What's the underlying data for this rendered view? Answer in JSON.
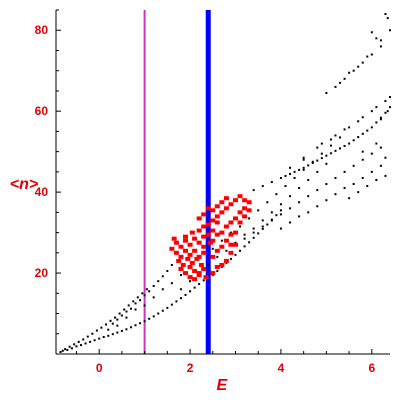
{
  "chart_data": {
    "type": "scatter",
    "xlabel": "E",
    "ylabel": "<n>",
    "xlim": [
      -0.95,
      6.4
    ],
    "ylim": [
      0,
      85
    ],
    "x_ticks": [
      {
        "value": 0,
        "label": "0"
      },
      {
        "value": 2,
        "label": "2"
      },
      {
        "value": 4,
        "label": "4"
      },
      {
        "value": 6,
        "label": "6"
      }
    ],
    "y_ticks": [
      {
        "value": 20,
        "label": "20"
      },
      {
        "value": 40,
        "label": "40"
      },
      {
        "value": 60,
        "label": "60"
      },
      {
        "value": 80,
        "label": "80"
      }
    ],
    "grid": false,
    "legend": "none",
    "vertical_lines": [
      {
        "x": 1.0,
        "color": "#cc33cc"
      },
      {
        "x": 2.4,
        "color": "#0000ff"
      }
    ],
    "series": [
      {
        "color": "#000000",
        "marker": "dot",
        "points": [
          [
            -0.85,
            0.5
          ],
          [
            -0.8,
            0.8
          ],
          [
            -0.75,
            1.2
          ],
          [
            -0.7,
            1.0
          ],
          [
            -0.65,
            1.8
          ],
          [
            -0.6,
            1.4
          ],
          [
            -0.55,
            2.4
          ],
          [
            -0.5,
            1.9
          ],
          [
            -0.45,
            3.0
          ],
          [
            -0.4,
            2.2
          ],
          [
            -0.35,
            3.6
          ],
          [
            -0.3,
            2.6
          ],
          [
            -0.25,
            4.3
          ],
          [
            -0.2,
            3.0
          ],
          [
            -0.15,
            5.0
          ],
          [
            -0.1,
            3.4
          ],
          [
            -0.05,
            5.8
          ],
          [
            0.0,
            3.8
          ],
          [
            0.05,
            6.5
          ],
          [
            0.1,
            4.2
          ],
          [
            0.15,
            7.3
          ],
          [
            0.2,
            4.5
          ],
          [
            0.25,
            8.2
          ],
          [
            0.3,
            4.9
          ],
          [
            0.35,
            9.0
          ],
          [
            0.4,
            5.3
          ],
          [
            0.45,
            10.0
          ],
          [
            0.5,
            5.7
          ],
          [
            0.55,
            11.0
          ],
          [
            0.6,
            6.1
          ],
          [
            0.65,
            12.0
          ],
          [
            0.7,
            6.6
          ],
          [
            0.75,
            13.0
          ],
          [
            0.8,
            7.1
          ],
          [
            0.85,
            14.0
          ],
          [
            0.9,
            7.6
          ],
          [
            0.95,
            15.0
          ],
          [
            1.0,
            8.1
          ],
          [
            1.05,
            16.0
          ],
          [
            1.1,
            8.7
          ],
          [
            1.2,
            9.3
          ],
          [
            1.3,
            10.0
          ],
          [
            1.4,
            10.7
          ],
          [
            1.5,
            11.4
          ],
          [
            1.6,
            12.2
          ],
          [
            1.7,
            13.0
          ],
          [
            1.8,
            13.8
          ],
          [
            1.9,
            14.6
          ],
          [
            2.0,
            15.5
          ],
          [
            2.1,
            16.4
          ],
          [
            2.2,
            17.3
          ],
          [
            2.3,
            18.2
          ],
          [
            2.5,
            19.5
          ],
          [
            2.6,
            20.5
          ],
          [
            2.7,
            21.5
          ],
          [
            2.8,
            22.5
          ],
          [
            2.9,
            23.5
          ],
          [
            3.0,
            24.5
          ],
          [
            3.1,
            25.5
          ],
          [
            3.2,
            26.6
          ],
          [
            3.3,
            27.6
          ],
          [
            3.4,
            28.7
          ],
          [
            3.5,
            29.8
          ],
          [
            3.6,
            30.9
          ],
          [
            3.7,
            32.0
          ],
          [
            3.8,
            33.2
          ],
          [
            3.9,
            34.3
          ],
          [
            4.0,
            35.5
          ],
          [
            0.2,
            6.0
          ],
          [
            0.3,
            7.5
          ],
          [
            0.4,
            8.5
          ],
          [
            0.5,
            9.5
          ],
          [
            0.6,
            10.5
          ],
          [
            0.7,
            11.2
          ],
          [
            0.8,
            12.5
          ],
          [
            0.9,
            13.3
          ],
          [
            1.0,
            14.5
          ],
          [
            1.1,
            15.5
          ],
          [
            1.2,
            16.8
          ],
          [
            1.3,
            18.0
          ],
          [
            1.4,
            19.2
          ],
          [
            1.5,
            20.5
          ],
          [
            1.6,
            22.0
          ],
          [
            0.4,
            7.0
          ],
          [
            0.6,
            9.0
          ],
          [
            0.8,
            11.0
          ],
          [
            1.0,
            12.0
          ],
          [
            1.2,
            14.0
          ],
          [
            1.4,
            16.0
          ],
          [
            1.6,
            17.5
          ],
          [
            1.8,
            19.5
          ],
          [
            2.0,
            21.5
          ],
          [
            1.8,
            16.0
          ],
          [
            2.0,
            18.0
          ],
          [
            2.2,
            19.5
          ],
          [
            2.4,
            22.0
          ],
          [
            2.6,
            24.0
          ],
          [
            2.8,
            25.5
          ],
          [
            3.0,
            27.5
          ],
          [
            3.2,
            29.5
          ],
          [
            3.4,
            31.0
          ],
          [
            3.6,
            33.0
          ],
          [
            3.8,
            35.0
          ],
          [
            4.0,
            37.0
          ],
          [
            4.2,
            39.0
          ],
          [
            4.4,
            41.0
          ],
          [
            4.6,
            43.0
          ],
          [
            4.8,
            45.0
          ],
          [
            5.0,
            47.0
          ],
          [
            2.5,
            26.0
          ],
          [
            2.7,
            28.0
          ],
          [
            2.9,
            30.0
          ],
          [
            3.1,
            31.5
          ],
          [
            3.3,
            33.5
          ],
          [
            3.5,
            35.5
          ],
          [
            3.7,
            37.5
          ],
          [
            3.9,
            39.5
          ],
          [
            4.1,
            41.5
          ],
          [
            4.3,
            43.5
          ],
          [
            4.5,
            45.5
          ],
          [
            4.7,
            47.5
          ],
          [
            4.9,
            49.5
          ],
          [
            5.1,
            51.5
          ],
          [
            5.3,
            53.5
          ],
          [
            3.0,
            27.0
          ],
          [
            3.2,
            28.5
          ],
          [
            3.4,
            30.0
          ],
          [
            3.6,
            31.5
          ],
          [
            3.8,
            33.0
          ],
          [
            4.0,
            34.5
          ],
          [
            4.2,
            36.0
          ],
          [
            4.4,
            37.5
          ],
          [
            4.6,
            39.0
          ],
          [
            4.8,
            40.5
          ],
          [
            5.0,
            42.0
          ],
          [
            5.2,
            43.5
          ],
          [
            5.4,
            45.0
          ],
          [
            5.6,
            46.5
          ],
          [
            5.8,
            48.0
          ],
          [
            6.0,
            49.5
          ],
          [
            6.2,
            51.0
          ],
          [
            4.0,
            31.0
          ],
          [
            4.2,
            32.5
          ],
          [
            4.4,
            34.0
          ],
          [
            4.6,
            35.0
          ],
          [
            4.8,
            36.5
          ],
          [
            5.0,
            38.0
          ],
          [
            5.2,
            39.5
          ],
          [
            5.4,
            41.0
          ],
          [
            5.6,
            42.0
          ],
          [
            5.8,
            43.5
          ],
          [
            6.0,
            45.0
          ],
          [
            6.2,
            46.5
          ],
          [
            5.5,
            38.5
          ],
          [
            5.7,
            40.0
          ],
          [
            5.9,
            41.5
          ],
          [
            6.1,
            43.0
          ],
          [
            6.3,
            44.0
          ],
          [
            3.4,
            40.5
          ],
          [
            3.6,
            41.5
          ],
          [
            3.8,
            42.5
          ],
          [
            4.0,
            43.5
          ],
          [
            4.1,
            44.0
          ],
          [
            4.2,
            44.5
          ],
          [
            4.3,
            45.0
          ],
          [
            4.4,
            45.5
          ],
          [
            4.5,
            46.0
          ],
          [
            4.6,
            46.6
          ],
          [
            4.7,
            47.2
          ],
          [
            4.8,
            47.8
          ],
          [
            4.9,
            48.4
          ],
          [
            5.0,
            49.0
          ],
          [
            5.1,
            49.6
          ],
          [
            5.2,
            50.2
          ],
          [
            5.3,
            50.8
          ],
          [
            5.4,
            51.4
          ],
          [
            5.5,
            52.0
          ],
          [
            5.6,
            52.8
          ],
          [
            5.7,
            53.6
          ],
          [
            5.8,
            54.4
          ],
          [
            5.9,
            55.2
          ],
          [
            6.0,
            56.0
          ],
          [
            6.1,
            57.2
          ],
          [
            6.2,
            58.4
          ],
          [
            6.3,
            59.6
          ],
          [
            6.4,
            61.0
          ],
          [
            4.5,
            48.5
          ],
          [
            4.8,
            51.0
          ],
          [
            5.1,
            53.0
          ],
          [
            5.4,
            55.5
          ],
          [
            5.7,
            57.5
          ],
          [
            6.0,
            60.0
          ],
          [
            6.3,
            62.5
          ],
          [
            4.2,
            46.0
          ],
          [
            4.5,
            48.0
          ],
          [
            4.9,
            52.0
          ],
          [
            5.2,
            54.0
          ],
          [
            5.5,
            56.0
          ],
          [
            5.8,
            58.5
          ],
          [
            6.1,
            61.0
          ],
          [
            6.4,
            63.5
          ],
          [
            5.2,
            66.0
          ],
          [
            5.4,
            68.0
          ],
          [
            5.6,
            70.0
          ],
          [
            5.8,
            72.0
          ],
          [
            6.0,
            74.0
          ],
          [
            6.2,
            76.0
          ],
          [
            6.4,
            80.0
          ],
          [
            6.3,
            84.0
          ],
          [
            6.1,
            78.0
          ],
          [
            5.9,
            73.5
          ],
          [
            5.7,
            71.0
          ],
          [
            5.5,
            69.5
          ],
          [
            5.3,
            67.0
          ],
          [
            5.0,
            64.5
          ],
          [
            6.35,
            83.0
          ],
          [
            6.0,
            79.5
          ],
          [
            6.2,
            77.5
          ],
          [
            6.2,
            58.0
          ],
          [
            6.3,
            48.5
          ],
          [
            6.35,
            60.0
          ],
          [
            6.1,
            52.0
          ],
          [
            5.8,
            50.0
          ]
        ]
      },
      {
        "color": "#ff0000",
        "marker": "square",
        "points": [
          [
            1.6,
            26.0
          ],
          [
            1.7,
            27.5
          ],
          [
            1.8,
            26.5
          ],
          [
            1.9,
            28.0
          ],
          [
            2.0,
            27.0
          ],
          [
            2.1,
            28.5
          ],
          [
            2.2,
            27.5
          ],
          [
            2.3,
            29.0
          ],
          [
            1.7,
            25.0
          ],
          [
            1.8,
            24.0
          ],
          [
            1.9,
            25.5
          ],
          [
            2.0,
            24.5
          ],
          [
            2.1,
            25.5
          ],
          [
            2.2,
            24.0
          ],
          [
            2.3,
            25.0
          ],
          [
            1.75,
            23.0
          ],
          [
            1.85,
            22.0
          ],
          [
            1.95,
            23.5
          ],
          [
            2.05,
            22.5
          ],
          [
            2.15,
            23.5
          ],
          [
            2.25,
            22.0
          ],
          [
            1.8,
            21.0
          ],
          [
            1.9,
            20.0
          ],
          [
            2.0,
            21.5
          ],
          [
            2.1,
            20.5
          ],
          [
            2.2,
            19.5
          ],
          [
            2.3,
            21.0
          ],
          [
            2.0,
            19.0
          ],
          [
            2.1,
            18.5
          ],
          [
            2.2,
            20.0
          ],
          [
            2.35,
            19.0
          ],
          [
            2.5,
            20.0
          ],
          [
            2.6,
            21.5
          ],
          [
            2.7,
            22.0
          ],
          [
            2.8,
            23.0
          ],
          [
            2.9,
            25.0
          ],
          [
            3.0,
            27.0
          ],
          [
            2.5,
            24.0
          ],
          [
            2.6,
            25.5
          ],
          [
            2.7,
            26.5
          ],
          [
            2.8,
            28.0
          ],
          [
            2.9,
            29.5
          ],
          [
            2.5,
            28.0
          ],
          [
            2.6,
            29.5
          ],
          [
            2.7,
            30.0
          ],
          [
            2.8,
            31.5
          ],
          [
            2.9,
            32.5
          ],
          [
            3.0,
            33.5
          ],
          [
            3.1,
            35.0
          ],
          [
            3.2,
            36.0
          ],
          [
            3.3,
            37.5
          ],
          [
            3.1,
            32.5
          ],
          [
            3.2,
            34.0
          ],
          [
            3.3,
            35.5
          ],
          [
            2.2,
            30.5
          ],
          [
            2.3,
            31.5
          ],
          [
            2.4,
            32.0
          ],
          [
            2.5,
            33.0
          ],
          [
            2.6,
            34.0
          ],
          [
            2.7,
            35.0
          ],
          [
            2.8,
            36.0
          ],
          [
            2.9,
            37.0
          ],
          [
            3.0,
            38.0
          ],
          [
            2.2,
            33.5
          ],
          [
            2.3,
            34.5
          ],
          [
            2.5,
            35.5
          ],
          [
            2.6,
            36.5
          ],
          [
            2.7,
            37.5
          ],
          [
            2.8,
            38.5
          ],
          [
            3.1,
            39.0
          ],
          [
            3.2,
            38.0
          ],
          [
            2.4,
            36.0
          ],
          [
            2.6,
            32.5
          ],
          [
            2.4,
            29.5
          ],
          [
            2.5,
            30.5
          ],
          [
            3.0,
            30.0
          ],
          [
            2.9,
            27.0
          ],
          [
            2.3,
            26.5
          ],
          [
            2.45,
            27.5
          ],
          [
            1.65,
            28.5
          ],
          [
            1.9,
            29.0
          ],
          [
            2.05,
            30.0
          ]
        ]
      }
    ]
  }
}
